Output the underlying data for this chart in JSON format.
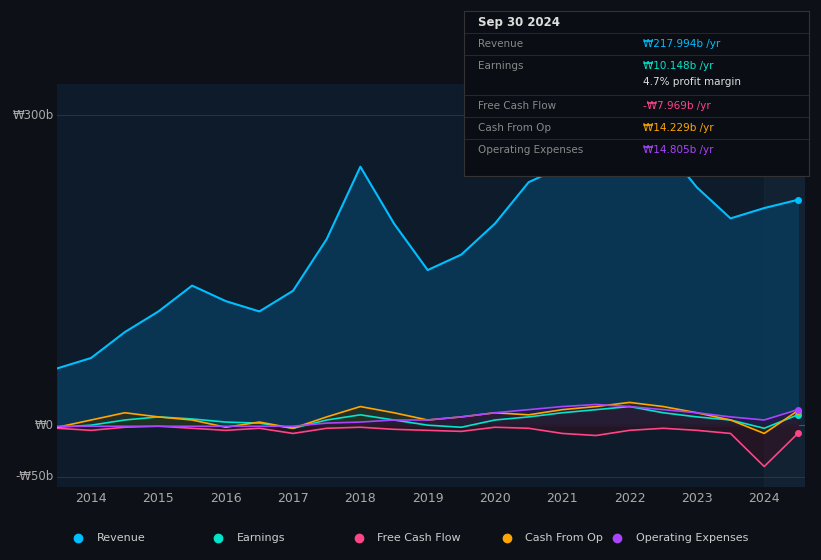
{
  "background_color": "#0d1117",
  "plot_bg_color": "#0d1b2a",
  "grid_color": "#2a3a4a",
  "ylabel_top": "₩300b",
  "ylabel_zero": "₩0",
  "ylabel_neg": "-₩50b",
  "x_labels": [
    "2014",
    "2015",
    "2016",
    "2017",
    "2018",
    "2019",
    "2020",
    "2021",
    "2022",
    "2023",
    "2024"
  ],
  "years": [
    2013.5,
    2014,
    2014.5,
    2015,
    2015.5,
    2016,
    2016.5,
    2017,
    2017.5,
    2018,
    2018.5,
    2019,
    2019.5,
    2020,
    2020.5,
    2021,
    2021.5,
    2022,
    2022.5,
    2023,
    2023.5,
    2024,
    2024.5
  ],
  "revenue": [
    55,
    65,
    90,
    110,
    135,
    120,
    110,
    130,
    180,
    250,
    195,
    150,
    165,
    195,
    235,
    250,
    270,
    310,
    270,
    230,
    200,
    210,
    218
  ],
  "earnings": [
    -2,
    0,
    5,
    8,
    6,
    3,
    2,
    -3,
    5,
    10,
    5,
    0,
    -2,
    5,
    8,
    12,
    15,
    18,
    12,
    8,
    5,
    -3,
    10
  ],
  "free_cash_flow": [
    -3,
    -5,
    -2,
    -1,
    -3,
    -5,
    -3,
    -8,
    -3,
    -2,
    -4,
    -5,
    -6,
    -2,
    -3,
    -8,
    -10,
    -5,
    -3,
    -5,
    -8,
    -40,
    -8
  ],
  "cash_from_op": [
    -2,
    5,
    12,
    8,
    5,
    -2,
    3,
    -3,
    8,
    18,
    12,
    5,
    8,
    12,
    10,
    15,
    18,
    22,
    18,
    12,
    5,
    -8,
    14
  ],
  "operating_expenses": [
    -1,
    -1,
    -1,
    -1,
    -1,
    -1,
    -1,
    -1,
    2,
    3,
    5,
    5,
    8,
    12,
    15,
    18,
    20,
    18,
    15,
    12,
    8,
    5,
    15
  ],
  "revenue_color": "#00bfff",
  "revenue_fill": "#0a3a5a",
  "earnings_color": "#00e5cc",
  "earnings_fill": "#004040",
  "free_cash_flow_color": "#ff4488",
  "free_cash_flow_fill": "#3a1020",
  "cash_from_op_color": "#ffa500",
  "cash_from_op_fill": "#3a2800",
  "operating_expenses_color": "#aa44ff",
  "operating_expenses_fill": "#2a1040",
  "highlight_bg": "#1a2a3a",
  "table_title": "Sep 30 2024",
  "table_revenue_label": "Revenue",
  "table_revenue_value": "₩217.994b /yr",
  "table_earnings_label": "Earnings",
  "table_earnings_value": "₩10.148b /yr",
  "table_margin_value": "4.7% profit margin",
  "table_fcf_label": "Free Cash Flow",
  "table_fcf_value": "-₩7.969b /yr",
  "table_cashop_label": "Cash From Op",
  "table_cashop_value": "₩14.229b /yr",
  "table_opex_label": "Operating Expenses",
  "table_opex_value": "₩14.805b /yr",
  "legend_items": [
    "Revenue",
    "Earnings",
    "Free Cash Flow",
    "Cash From Op",
    "Operating Expenses"
  ],
  "legend_colors": [
    "#00bfff",
    "#00e5cc",
    "#ff4488",
    "#ffa500",
    "#aa44ff"
  ]
}
